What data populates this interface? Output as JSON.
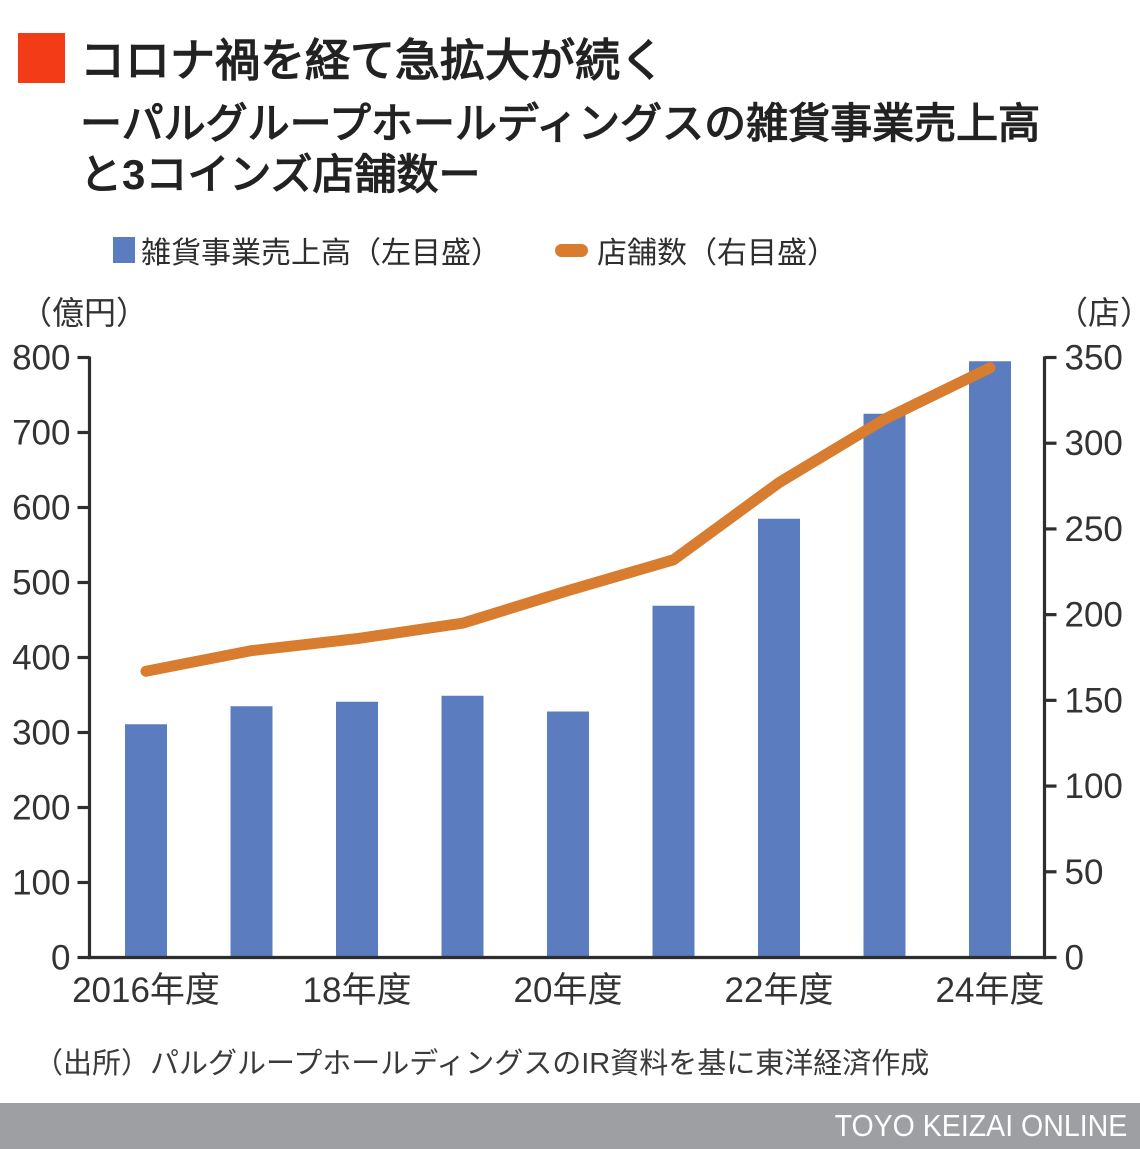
{
  "header": {
    "accent_color": "#f43b17",
    "title": "コロナ禍を経て急拡大が続く",
    "subtitle_line1": "ーパルグループホールディングスの雑貨事業売上高",
    "subtitle_line2": "と3コインズ店舗数ー"
  },
  "legend": {
    "bar_label": "雑貨事業売上高（左目盛）",
    "line_label": "店舗数（右目盛）"
  },
  "chart_data": {
    "type": "bar",
    "subtype": "bar+line dual axis",
    "categories": [
      "2016年度",
      "",
      "18年度",
      "",
      "20年度",
      "",
      "22年度",
      "",
      "24年度"
    ],
    "x_tick_labels": [
      {
        "bar_index": 0,
        "label": "2016年度"
      },
      {
        "bar_index": 2,
        "label": "18年度"
      },
      {
        "bar_index": 4,
        "label": "20年度"
      },
      {
        "bar_index": 6,
        "label": "22年度"
      },
      {
        "bar_index": 8,
        "label": "24年度"
      }
    ],
    "series": [
      {
        "name": "雑貨事業売上高（左目盛）",
        "type": "bar",
        "axis": "left",
        "color": "#5b7cbe",
        "values": [
          311,
          335,
          341,
          349,
          328,
          469,
          585,
          725,
          795
        ]
      },
      {
        "name": "店舗数（右目盛）",
        "type": "line",
        "axis": "right",
        "color": "#d87c2f",
        "values": [
          167,
          179,
          186,
          195,
          214,
          232,
          277,
          314,
          344
        ]
      }
    ],
    "left_axis": {
      "unit_label": "（億円）",
      "min": 0,
      "max": 800,
      "tick_step": 100
    },
    "right_axis": {
      "unit_label": "（店）",
      "min": 0,
      "max": 350,
      "tick_step": 50
    },
    "grid": false,
    "legend_position": "top",
    "axis_color": "#2e2e2e",
    "tick_label_color": "#333333"
  },
  "source": "（出所）パルグループホールディングスのIR資料を基に東洋経済作成",
  "footer": {
    "brand": "TOYO KEIZAI ONLINE",
    "bar_color": "#9e9fa2"
  }
}
